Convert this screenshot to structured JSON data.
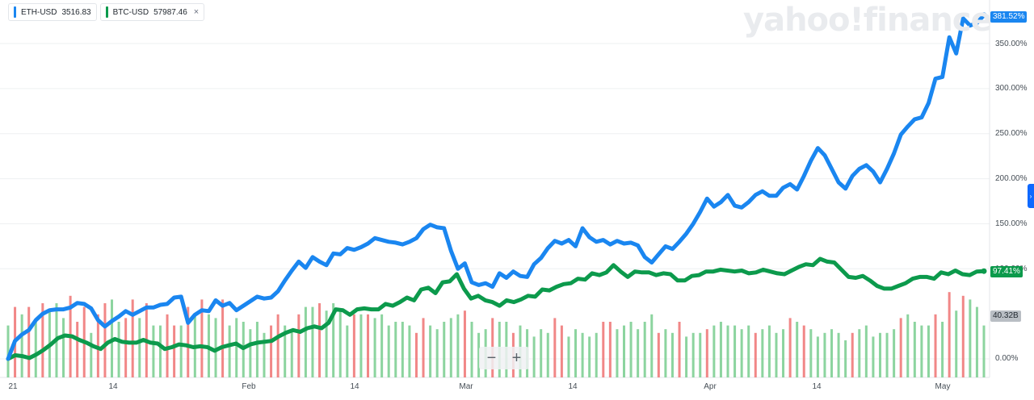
{
  "legend": [
    {
      "symbol": "ETH-USD",
      "price": "3516.83",
      "color": "#1a86f0"
    },
    {
      "symbol": "BTC-USD",
      "price": "57987.46",
      "color": "#0c9a4c"
    }
  ],
  "close_glyph": "×",
  "brand": "yahoo!finance",
  "zoom": {
    "minus": "−",
    "plus": "+"
  },
  "side_button": "›",
  "tags": {
    "eth": "381.52%",
    "btc": "97.41%",
    "volume": "40.32B"
  },
  "chart_data": {
    "type": "line",
    "y_axis": {
      "labels": [
        "350.00%",
        "300.00%",
        "250.00%",
        "200.00%",
        "150.00%",
        "100.00%",
        "0.00%"
      ],
      "unit": "%"
    },
    "x_labels": [
      "21",
      "14",
      "Feb",
      "14",
      "Mar",
      "14",
      "Apr",
      "14",
      "May"
    ],
    "series": [
      {
        "name": "ETH-USD",
        "color": "#1a86f0",
        "values": [
          0,
          20,
          27,
          32,
          43,
          50,
          54,
          55,
          55,
          57,
          62,
          61,
          56,
          43,
          36,
          42,
          47,
          53,
          49,
          53,
          57,
          57,
          60,
          61,
          68,
          69,
          40,
          49,
          54,
          53,
          65,
          59,
          62,
          54,
          59,
          64,
          69,
          67,
          68,
          75,
          87,
          98,
          108,
          101,
          113,
          108,
          104,
          117,
          116,
          123,
          121,
          124,
          128,
          134,
          132,
          130,
          129,
          127,
          130,
          134,
          144,
          149,
          146,
          145,
          120,
          100,
          106,
          85,
          82,
          84,
          80,
          95,
          90,
          97,
          92,
          91,
          105,
          112,
          123,
          131,
          128,
          132,
          125,
          145,
          135,
          130,
          132,
          127,
          131,
          128,
          129,
          126,
          113,
          107,
          116,
          125,
          122,
          130,
          139,
          150,
          163,
          178,
          169,
          174,
          182,
          170,
          168,
          174,
          182,
          186,
          181,
          181,
          190,
          194,
          188,
          203,
          220,
          234,
          226,
          211,
          196,
          189,
          203,
          211,
          215,
          208,
          196,
          211,
          228,
          249,
          258,
          266,
          268,
          284,
          311,
          313,
          357,
          339,
          378,
          370,
          373,
          381.52
        ]
      },
      {
        "name": "BTC-USD",
        "color": "#0c9a4c",
        "values": [
          0,
          4,
          3,
          1,
          5,
          10,
          16,
          23,
          26,
          25,
          21,
          18,
          14,
          11,
          18,
          22,
          19,
          18,
          18,
          21,
          18,
          17,
          11,
          13,
          16,
          15,
          13,
          14,
          13,
          9,
          13,
          15,
          17,
          12,
          16,
          18,
          19,
          20,
          25,
          29,
          32,
          30,
          34,
          36,
          34,
          40,
          55,
          54,
          49,
          55,
          56,
          55,
          55,
          61,
          59,
          63,
          68,
          65,
          77,
          79,
          73,
          85,
          86,
          94,
          78,
          67,
          70,
          65,
          63,
          59,
          65,
          63,
          66,
          70,
          69,
          77,
          76,
          80,
          83,
          84,
          89,
          88,
          95,
          93,
          96,
          104,
          97,
          91,
          97,
          96,
          96,
          93,
          95,
          94,
          87,
          87,
          92,
          93,
          97,
          97,
          99,
          98,
          97,
          98,
          95,
          96,
          99,
          97,
          95,
          94,
          98,
          102,
          105,
          104,
          111,
          108,
          107,
          99,
          91,
          90,
          92,
          87,
          81,
          78,
          78,
          81,
          84,
          89,
          91,
          91,
          89,
          96,
          94,
          98,
          94,
          93,
          97,
          97.41
        ]
      },
      {
        "name": "Volume",
        "color": "#5fc07d",
        "values": [
          14,
          19,
          17,
          19,
          15,
          20,
          18,
          20,
          16,
          22,
          15,
          19,
          12,
          17,
          20,
          21,
          15,
          16,
          21,
          16,
          20,
          14,
          14,
          17,
          14,
          14,
          19,
          17,
          21,
          17,
          16,
          21,
          14,
          16,
          15,
          13,
          15,
          12,
          14,
          17,
          14,
          13,
          17,
          19,
          19,
          20,
          18,
          20,
          18,
          14,
          17,
          17,
          17,
          16,
          17,
          14,
          15,
          15,
          14,
          12,
          16,
          14,
          13,
          15,
          16,
          17,
          18,
          15,
          12,
          13,
          16,
          15,
          15,
          12,
          14,
          13,
          11,
          13,
          12,
          16,
          14,
          11,
          13,
          12,
          11,
          12,
          15,
          15,
          13,
          14,
          15,
          13,
          15,
          17,
          12,
          13,
          12,
          15,
          11,
          12,
          12,
          13,
          14,
          15,
          14,
          14,
          13,
          14,
          12,
          13,
          14,
          12,
          13,
          16,
          15,
          14,
          13,
          11,
          12,
          13,
          12,
          10,
          12,
          13,
          14,
          11,
          12,
          12,
          13,
          16,
          17,
          15,
          14,
          14,
          17,
          15,
          23,
          18,
          22,
          21,
          19,
          14
        ]
      }
    ]
  }
}
